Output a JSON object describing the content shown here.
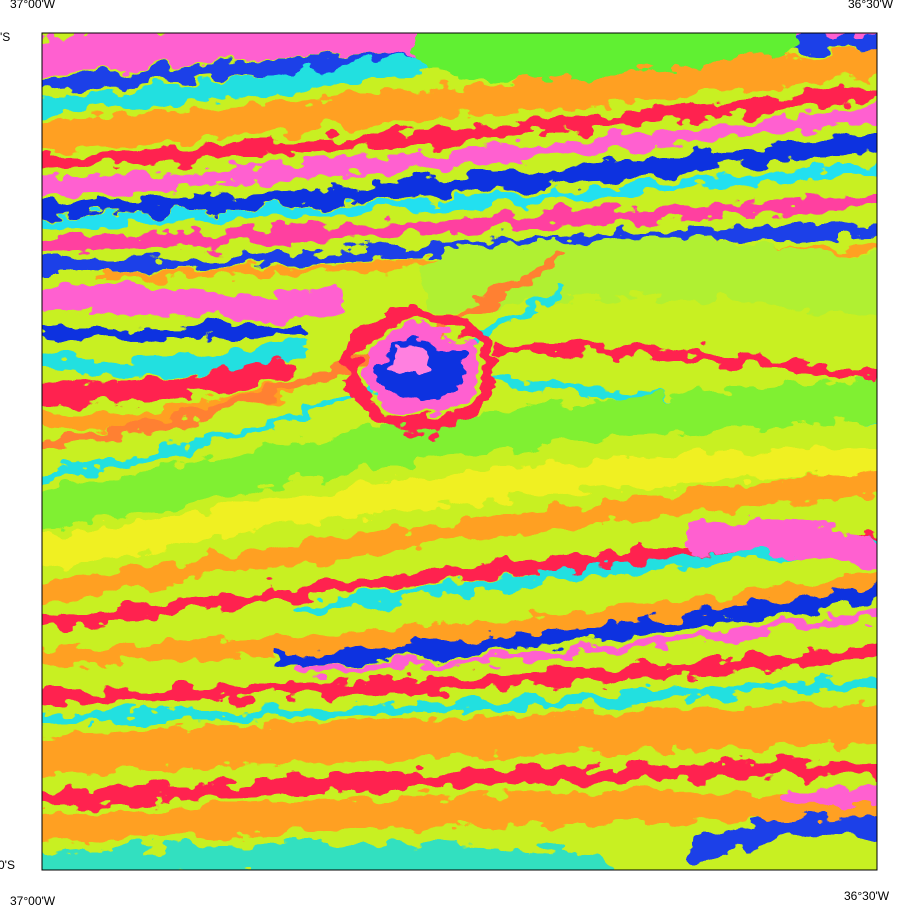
{
  "labels": {
    "top_left": "37°00'W",
    "top_right": "36°30'W",
    "left_top": "'S",
    "left_bottom": "0'S",
    "bottom_left": "37°00'W",
    "bottom_right": "36°30'W"
  }
}
